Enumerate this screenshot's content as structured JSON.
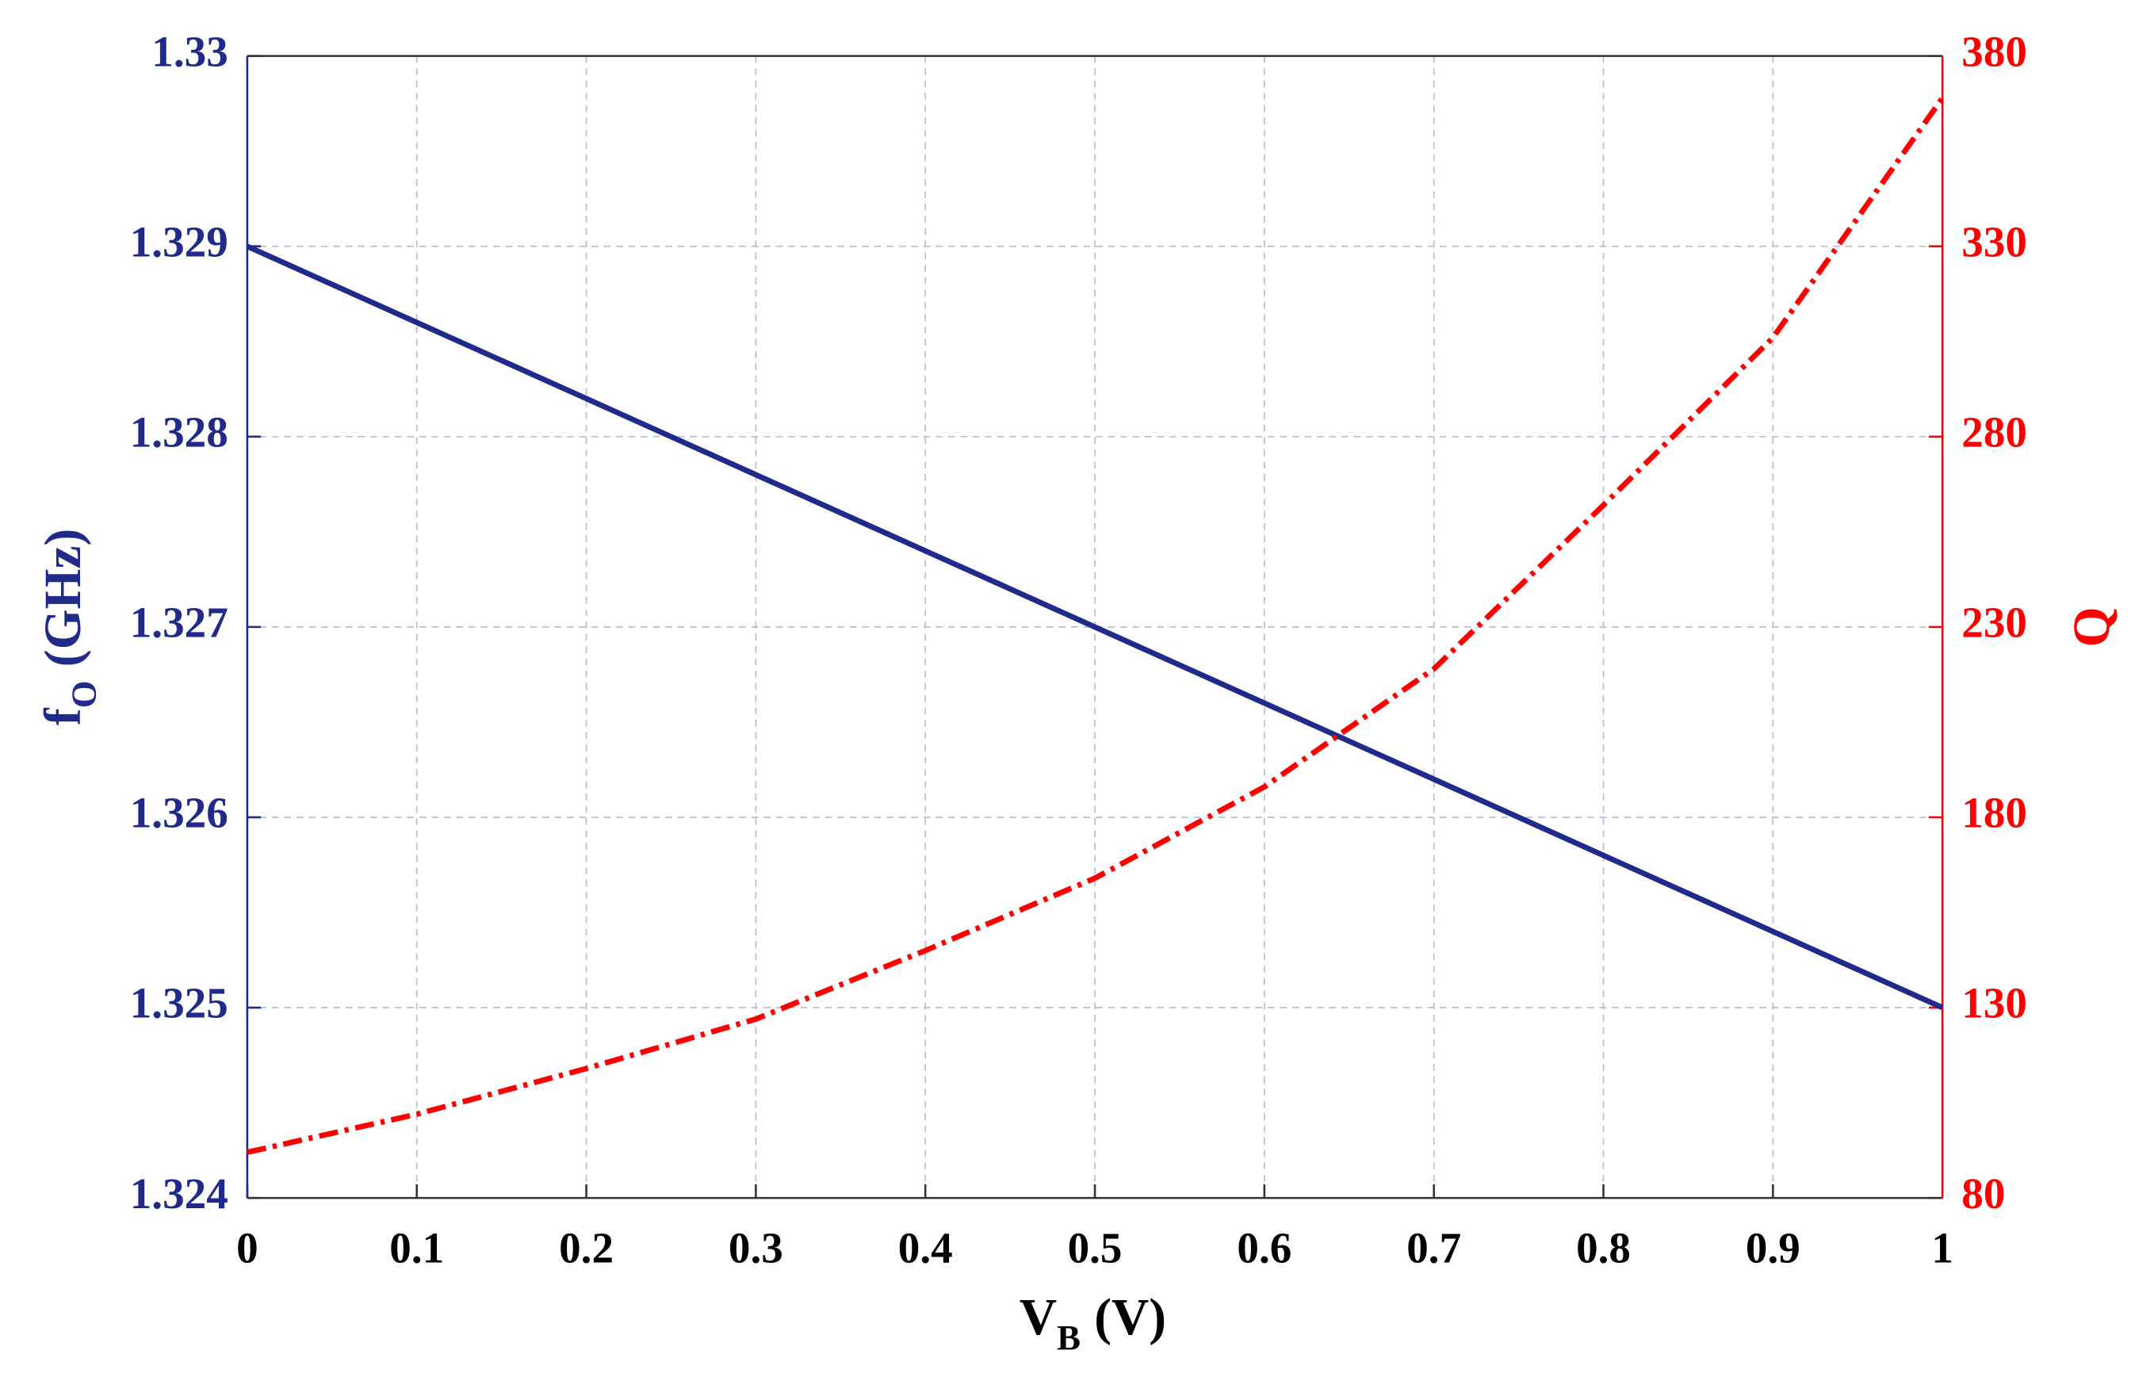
{
  "chart_data": {
    "type": "line",
    "xlabel": {
      "base": "V",
      "sub": "B",
      "unit": "(V)"
    },
    "ylabel": {
      "base": "f",
      "sub": "O",
      "unit": "(GHz)"
    },
    "y2label": "Q",
    "x": [
      0,
      0.1,
      0.2,
      0.3,
      0.4,
      0.5,
      0.6,
      0.7,
      0.8,
      0.9,
      1
    ],
    "series": [
      {
        "color": "#1f2a8a",
        "dash": "solid",
        "axis": "y",
        "values": [
          1.329,
          1.3286,
          1.3282,
          1.3278,
          1.3274,
          1.327,
          1.3266,
          1.3262,
          1.3258,
          1.3254,
          1.325
        ]
      },
      {
        "color": "#ff0000",
        "dash": "dashdot",
        "axis": "y2",
        "values": [
          92,
          102,
          114,
          127,
          145,
          164,
          188,
          219,
          262,
          306,
          369
        ]
      }
    ],
    "xlim": [
      0,
      1
    ],
    "xticks": [
      0,
      0.1,
      0.2,
      0.3,
      0.4,
      0.5,
      0.6,
      0.7,
      0.8,
      0.9,
      1
    ],
    "ylim": [
      1.324,
      1.33
    ],
    "yticks": [
      1.324,
      1.325,
      1.326,
      1.327,
      1.328,
      1.329,
      1.33
    ],
    "y2lim": [
      80,
      380
    ],
    "y2ticks": [
      80,
      130,
      180,
      230,
      280,
      330,
      380
    ],
    "grid": true
  }
}
